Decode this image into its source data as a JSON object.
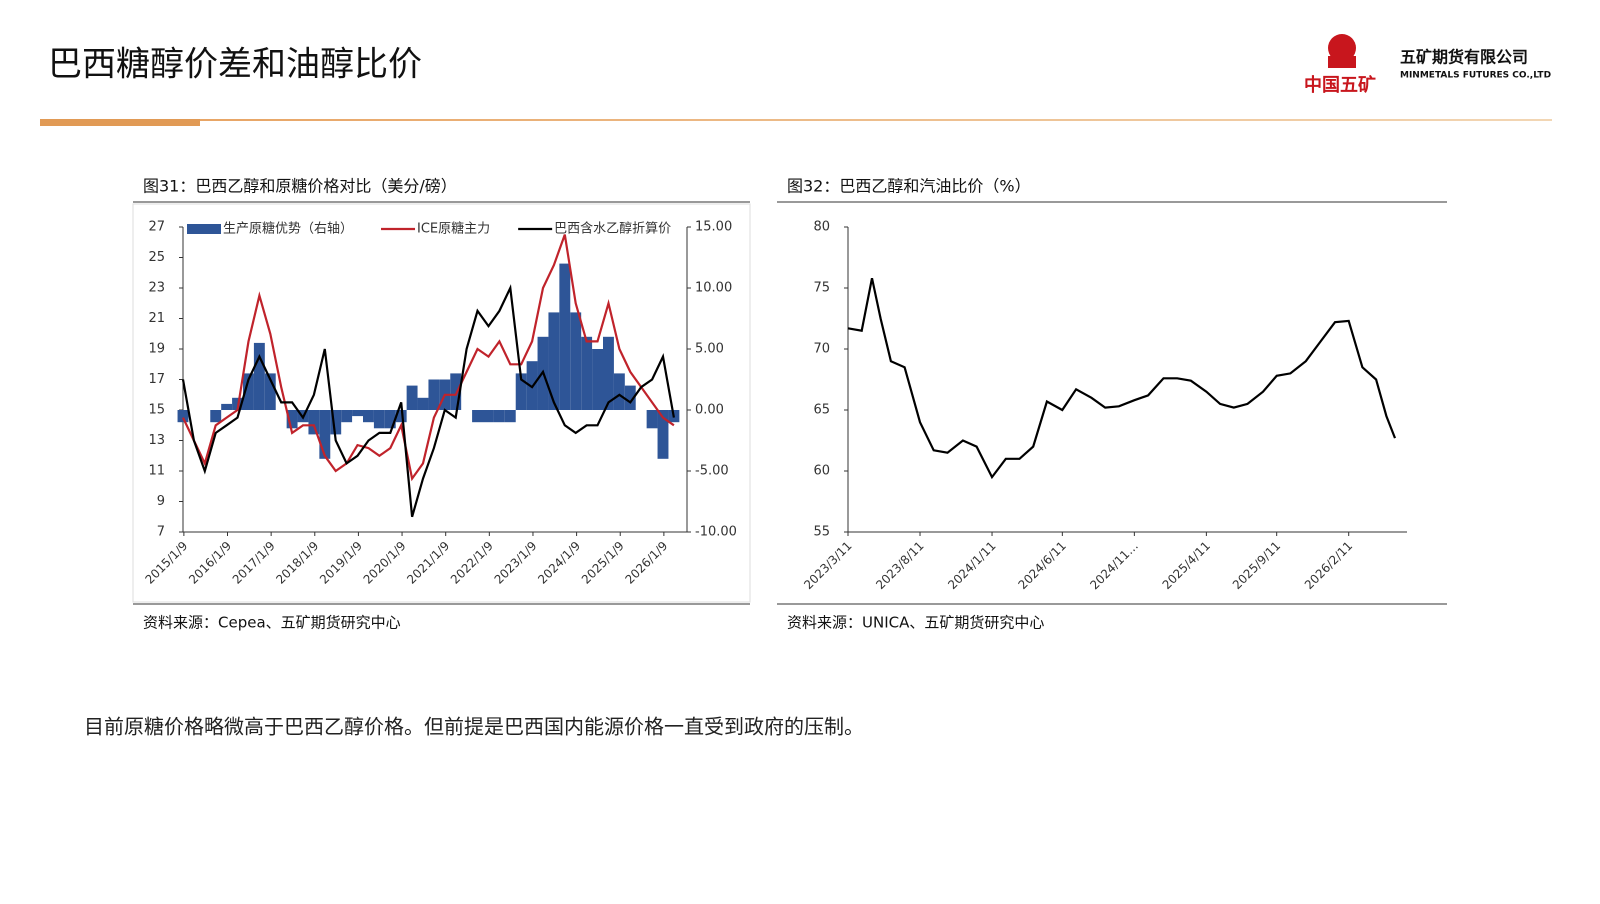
{
  "header": {
    "title": "巴西糖醇价差和油醇比价",
    "logo_text": "中国五矿",
    "company": "五矿期货有限公司",
    "company_en": "MINMETALS FUTURES CO.,LTD"
  },
  "chart_data": [
    {
      "type": "line",
      "title": "图31：巴西乙醇和原糖价格对比（美分/磅）",
      "source": "资料来源：Cepea、五矿期货研究中心",
      "x": [
        2015,
        2015.25,
        2015.5,
        2015.75,
        2016,
        2016.25,
        2016.5,
        2016.75,
        2017,
        2017.25,
        2017.5,
        2017.75,
        2018,
        2018.25,
        2018.5,
        2018.75,
        2019,
        2019.25,
        2019.5,
        2019.75,
        2020,
        2020.25,
        2020.5,
        2020.75,
        2021,
        2021.25,
        2021.5,
        2021.75,
        2022,
        2022.25,
        2022.5,
        2022.75,
        2023,
        2023.25,
        2023.5,
        2023.75,
        2024,
        2024.25,
        2024.5,
        2024.75,
        2025,
        2025.25,
        2025.5,
        2025.75,
        2026,
        2026.25
      ],
      "xlim": [
        2015,
        2026.55
      ],
      "xticks": [
        {
          "value": 2015.02,
          "label": "2015/1/9"
        },
        {
          "value": 2016.02,
          "label": "2016/1/9"
        },
        {
          "value": 2017.02,
          "label": "2017/1/9"
        },
        {
          "value": 2018.02,
          "label": "2018/1/9"
        },
        {
          "value": 2019.02,
          "label": "2019/1/9"
        },
        {
          "value": 2020.02,
          "label": "2020/1/9"
        },
        {
          "value": 2021.02,
          "label": "2021/1/9"
        },
        {
          "value": 2022.02,
          "label": "2022/1/9"
        },
        {
          "value": 2023.02,
          "label": "2023/1/9"
        },
        {
          "value": 2024.02,
          "label": "2024/1/9"
        },
        {
          "value": 2025.02,
          "label": "2025/1/9"
        },
        {
          "value": 2026.02,
          "label": "2026/1/9"
        }
      ],
      "ylim": [
        7,
        27
      ],
      "yticks": [
        7,
        9,
        11,
        13,
        15,
        17,
        19,
        21,
        23,
        25,
        27
      ],
      "y2lim": [
        -10,
        15
      ],
      "y2ticks": [
        {
          "value": -10,
          "label": "-10.00"
        },
        {
          "value": -5,
          "label": "-5.00"
        },
        {
          "value": 0,
          "label": "0.00"
        },
        {
          "value": 5,
          "label": "5.00"
        },
        {
          "value": 10,
          "label": "10.00"
        },
        {
          "value": 15,
          "label": "15.00"
        }
      ],
      "series": [
        {
          "name": "生产原糖优势（右轴）",
          "color": "#2e5597",
          "type": "bar",
          "axis": "y2",
          "values": [
            -1,
            0,
            0,
            -1,
            0.5,
            1,
            3,
            5.5,
            3,
            0,
            -1.5,
            -1,
            -2,
            -4,
            -2,
            -1,
            -0.5,
            -1,
            -1.5,
            -1.5,
            -1,
            2,
            1,
            2.5,
            2.5,
            3,
            0,
            -1,
            -1,
            -1,
            -1,
            3,
            4,
            6,
            8,
            12,
            8,
            6,
            5,
            6,
            3,
            2,
            0,
            -1.5,
            -4,
            -1
          ]
        },
        {
          "name": "ICE原糖主力",
          "color": "#c0232b",
          "values": [
            14.5,
            13,
            11.5,
            14,
            14.5,
            15,
            19.5,
            22.5,
            20,
            16.5,
            13.5,
            14,
            14,
            12,
            11,
            11.5,
            12.7,
            12.5,
            12,
            12.5,
            14,
            10.5,
            11.5,
            14.5,
            16,
            16,
            17.5,
            19,
            18.5,
            19.5,
            18,
            18,
            19.5,
            23,
            24.5,
            26.5,
            22,
            19.5,
            19.5,
            22,
            19,
            17.5,
            16.5,
            15.5,
            14.5,
            14
          ]
        },
        {
          "name": "巴西含水乙醇折算价",
          "color": "#000000",
          "values": [
            17,
            13,
            11,
            13.5,
            14,
            14.5,
            17,
            18.5,
            17,
            15.5,
            15.5,
            14.5,
            16,
            19,
            13,
            11.5,
            12,
            13,
            13.5,
            13.5,
            15.5,
            8,
            10.5,
            12.5,
            15,
            14.5,
            19,
            21.5,
            20.5,
            21.5,
            23,
            17,
            16.5,
            17.5,
            15.5,
            14,
            13.5,
            14,
            14,
            15.5,
            16,
            15.5,
            16.5,
            17,
            18.5,
            14.5
          ]
        }
      ]
    },
    {
      "type": "line",
      "title": "图32：巴西乙醇和汽油比价（%）",
      "source": "资料来源：UNICA、五矿期货研究中心",
      "x": [
        2023.19,
        2023.27,
        2023.33,
        2023.38,
        2023.44,
        2023.52,
        2023.61,
        2023.69,
        2023.77,
        2023.86,
        2023.94,
        2024.03,
        2024.11,
        2024.19,
        2024.27,
        2024.35,
        2024.44,
        2024.52,
        2024.61,
        2024.69,
        2024.77,
        2024.86,
        2024.94,
        2025.03,
        2025.11,
        2025.19,
        2025.28,
        2025.36,
        2025.44,
        2025.52,
        2025.61,
        2025.69,
        2025.77,
        2025.86,
        2025.94,
        2026.03,
        2026.11,
        2026.19,
        2026.27,
        2026.33,
        2026.38
      ],
      "xlim": [
        2023.19,
        2026.45
      ],
      "xticks": [
        {
          "value": 2023.19,
          "label": "2023/3/11"
        },
        {
          "value": 2023.61,
          "label": "2023/8/11"
        },
        {
          "value": 2024.03,
          "label": "2024/1/11"
        },
        {
          "value": 2024.44,
          "label": "2024/6/11"
        },
        {
          "value": 2024.86,
          "label": "2024/11…"
        },
        {
          "value": 2025.28,
          "label": "2025/4/11"
        },
        {
          "value": 2025.69,
          "label": "2025/9/11"
        },
        {
          "value": 2026.11,
          "label": "2026/2/11"
        }
      ],
      "ylim": [
        55,
        80
      ],
      "yticks": [
        55,
        60,
        65,
        70,
        75,
        80
      ],
      "series": [
        {
          "color": "#000000",
          "values": [
            71.7,
            71.5,
            75.8,
            72.5,
            69,
            68.5,
            64,
            61.7,
            61.5,
            62.5,
            62,
            59.5,
            61,
            61,
            62,
            65.7,
            65,
            66.7,
            66,
            65.2,
            65.3,
            65.8,
            66.2,
            67.6,
            67.6,
            67.4,
            66.5,
            65.5,
            65.2,
            65.5,
            66.5,
            67.8,
            68,
            69,
            70.5,
            72.2,
            72.3,
            68.5,
            67.5,
            64.5,
            62.7
          ]
        }
      ]
    }
  ],
  "body_text": "目前原糖价格略微高于巴西乙醇价格。但前提是巴西国内能源价格一直受到政府的压制。"
}
